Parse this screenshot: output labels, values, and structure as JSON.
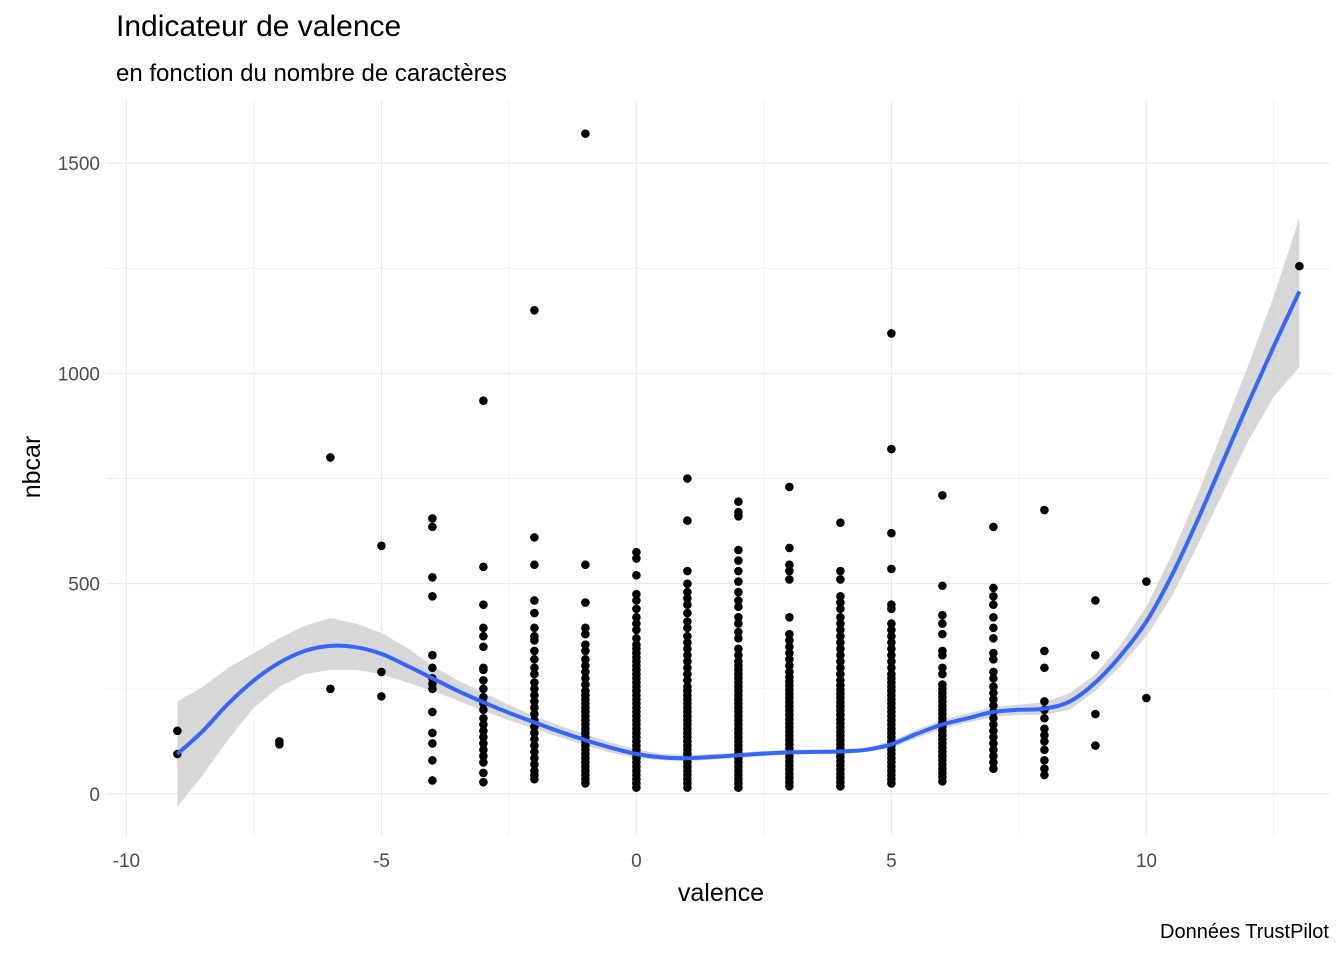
{
  "chart_data": {
    "type": "scatter",
    "title": "Indicateur de valence",
    "subtitle": "en fonction du nombre de caractères",
    "caption": "Données TrustPilot",
    "xlabel": "valence",
    "ylabel": "nbcar",
    "xlim": [
      -10.4,
      13.6
    ],
    "ylim": [
      -100,
      1650
    ],
    "x_ticks": [
      -10,
      -5,
      0,
      5,
      10
    ],
    "x_tick_labels": [
      "-10",
      "-5",
      "0",
      "5",
      "10"
    ],
    "y_ticks": [
      0,
      500,
      1000,
      1500
    ],
    "y_tick_labels": [
      "0",
      "500",
      "1000",
      "1500"
    ],
    "grid": true,
    "point_color": "#000000",
    "smooth_color": "#3366FF",
    "ribbon_color": "#D3D3D3",
    "points": [
      {
        "x": -9,
        "y": [
          95,
          150
        ]
      },
      {
        "x": -7,
        "y": [
          118,
          125
        ]
      },
      {
        "x": -6,
        "y": [
          250,
          800
        ]
      },
      {
        "x": -5,
        "y": [
          232,
          290,
          590
        ]
      },
      {
        "x": -4,
        "y": [
          32,
          80,
          120,
          145,
          195,
          250,
          262,
          275,
          300,
          330,
          470,
          515,
          635,
          655
        ]
      },
      {
        "x": -3,
        "y": [
          28,
          50,
          75,
          90,
          105,
          120,
          135,
          150,
          165,
          180,
          200,
          215,
          230,
          250,
          270,
          295,
          300,
          350,
          375,
          395,
          450,
          540,
          935
        ]
      },
      {
        "x": -2,
        "y": [
          35,
          45,
          55,
          70,
          85,
          100,
          115,
          130,
          145,
          160,
          175,
          190,
          205,
          220,
          235,
          250,
          265,
          285,
          300,
          320,
          340,
          365,
          375,
          395,
          430,
          460,
          545,
          610,
          1150
        ]
      },
      {
        "x": -1,
        "y": [
          25,
          35,
          45,
          55,
          65,
          75,
          85,
          95,
          105,
          115,
          125,
          135,
          145,
          155,
          165,
          175,
          185,
          195,
          205,
          215,
          225,
          235,
          245,
          260,
          275,
          290,
          305,
          320,
          340,
          355,
          380,
          395,
          455,
          545,
          1570
        ]
      },
      {
        "x": 0,
        "y": [
          15,
          25,
          35,
          45,
          55,
          65,
          75,
          85,
          95,
          105,
          115,
          125,
          135,
          145,
          155,
          165,
          175,
          185,
          195,
          205,
          215,
          225,
          235,
          245,
          255,
          265,
          275,
          285,
          295,
          305,
          315,
          325,
          335,
          345,
          355,
          370,
          390,
          405,
          420,
          440,
          460,
          475,
          520,
          560,
          575
        ]
      },
      {
        "x": 1,
        "y": [
          15,
          25,
          35,
          45,
          55,
          65,
          75,
          85,
          95,
          105,
          115,
          125,
          135,
          145,
          155,
          165,
          175,
          185,
          195,
          205,
          215,
          225,
          235,
          245,
          255,
          270,
          285,
          300,
          315,
          330,
          345,
          360,
          375,
          395,
          410,
          430,
          450,
          465,
          480,
          500,
          530,
          650,
          750
        ]
      },
      {
        "x": 2,
        "y": [
          15,
          25,
          35,
          45,
          55,
          65,
          75,
          85,
          95,
          105,
          115,
          125,
          135,
          145,
          155,
          165,
          175,
          185,
          195,
          205,
          215,
          225,
          235,
          245,
          255,
          265,
          275,
          285,
          295,
          305,
          315,
          330,
          345,
          370,
          385,
          405,
          420,
          445,
          460,
          480,
          505,
          530,
          555,
          580,
          660,
          670,
          695
        ]
      },
      {
        "x": 3,
        "y": [
          18,
          28,
          38,
          48,
          58,
          68,
          78,
          88,
          98,
          108,
          118,
          128,
          138,
          148,
          158,
          168,
          178,
          188,
          198,
          208,
          218,
          228,
          238,
          248,
          258,
          268,
          278,
          290,
          305,
          320,
          335,
          350,
          365,
          380,
          420,
          510,
          530,
          545,
          585,
          730
        ]
      },
      {
        "x": 4,
        "y": [
          18,
          28,
          38,
          48,
          58,
          68,
          78,
          88,
          98,
          108,
          118,
          128,
          138,
          148,
          158,
          168,
          178,
          188,
          198,
          208,
          218,
          228,
          238,
          248,
          258,
          270,
          285,
          300,
          315,
          330,
          345,
          360,
          375,
          390,
          405,
          420,
          440,
          455,
          470,
          510,
          530,
          645
        ]
      },
      {
        "x": 5,
        "y": [
          25,
          35,
          45,
          55,
          65,
          75,
          85,
          95,
          105,
          115,
          125,
          135,
          145,
          155,
          165,
          175,
          185,
          195,
          205,
          215,
          225,
          235,
          245,
          255,
          265,
          275,
          285,
          300,
          315,
          330,
          345,
          360,
          375,
          390,
          405,
          440,
          450,
          535,
          620,
          820,
          1095
        ]
      },
      {
        "x": 6,
        "y": [
          30,
          40,
          50,
          60,
          70,
          80,
          90,
          100,
          110,
          120,
          130,
          140,
          150,
          160,
          170,
          180,
          190,
          200,
          210,
          220,
          230,
          240,
          250,
          260,
          285,
          300,
          330,
          340,
          380,
          405,
          425,
          495,
          710
        ]
      },
      {
        "x": 7,
        "y": [
          60,
          75,
          90,
          105,
          120,
          135,
          150,
          165,
          180,
          195,
          210,
          225,
          240,
          255,
          275,
          290,
          320,
          335,
          370,
          395,
          420,
          450,
          470,
          490,
          635
        ]
      },
      {
        "x": 8,
        "y": [
          45,
          60,
          80,
          105,
          125,
          140,
          155,
          180,
          200,
          220,
          300,
          340,
          675
        ]
      },
      {
        "x": 9,
        "y": [
          115,
          190,
          330,
          460
        ]
      },
      {
        "x": 10,
        "y": [
          228,
          505
        ]
      },
      {
        "x": 13,
        "y": [
          1255
        ]
      }
    ],
    "smooth": {
      "x": [
        -9,
        -8.5,
        -8,
        -7.5,
        -7,
        -6.5,
        -6,
        -5.5,
        -5,
        -4.5,
        -4,
        -3.5,
        -3,
        -2.5,
        -2,
        -1.5,
        -1,
        -0.5,
        0,
        0.5,
        1,
        1.5,
        2,
        2.5,
        3,
        3.5,
        4,
        4.5,
        5,
        5.5,
        6,
        6.5,
        7,
        7.5,
        8,
        8.5,
        9,
        9.5,
        10,
        10.5,
        11,
        11.5,
        12,
        12.5,
        13
      ],
      "y": [
        95,
        150,
        215,
        270,
        312,
        340,
        352,
        349,
        333,
        305,
        275,
        245,
        218,
        193,
        170,
        148,
        128,
        110,
        95,
        87,
        85,
        88,
        92,
        96,
        99,
        100,
        101,
        105,
        118,
        143,
        165,
        180,
        195,
        200,
        203,
        220,
        265,
        330,
        410,
        520,
        650,
        790,
        930,
        1065,
        1195
      ],
      "ymin": [
        -30,
        45,
        130,
        205,
        255,
        285,
        295,
        295,
        285,
        265,
        245,
        222,
        198,
        175,
        155,
        135,
        115,
        98,
        85,
        80,
        78,
        82,
        86,
        90,
        94,
        95,
        96,
        100,
        110,
        133,
        155,
        170,
        183,
        188,
        188,
        200,
        245,
        305,
        375,
        470,
        590,
        715,
        840,
        945,
        1015
      ],
      "ymax": [
        220,
        255,
        300,
        335,
        370,
        400,
        418,
        405,
        383,
        348,
        305,
        270,
        240,
        212,
        185,
        162,
        142,
        122,
        106,
        95,
        93,
        95,
        98,
        102,
        104,
        105,
        106,
        110,
        126,
        153,
        176,
        192,
        207,
        212,
        218,
        240,
        285,
        355,
        445,
        570,
        710,
        865,
        1020,
        1185,
        1370
      ]
    }
  }
}
